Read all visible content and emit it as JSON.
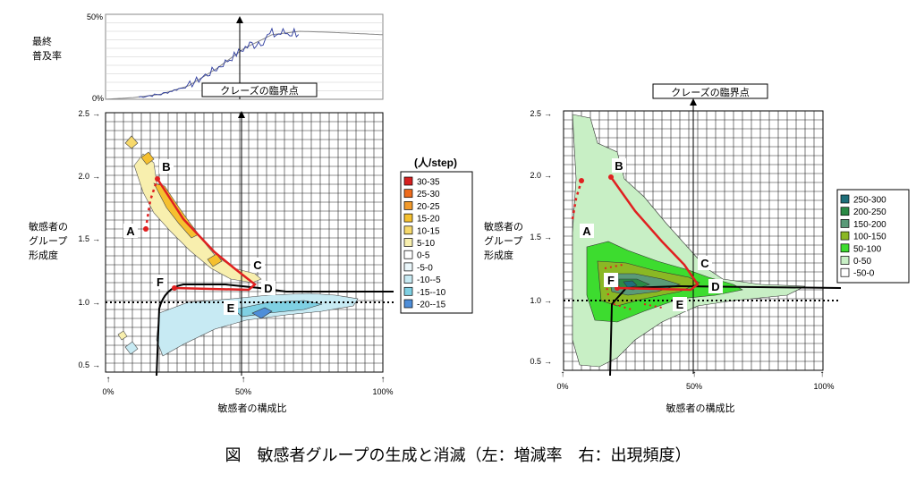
{
  "top_chart": {
    "ylabel_line1": "最終",
    "ylabel_line2": "普及率",
    "y_max_label": "50%",
    "y_min_label": "0%",
    "callout": "クレーズの臨界点"
  },
  "left_panel": {
    "callout": "クレーズの臨界点",
    "ylabel_line1": "敏感者の",
    "ylabel_line2": "グループ",
    "ylabel_line3": "形成度",
    "xlabel": "敏感者の構成比",
    "y_ticks": [
      "2.5",
      "2.0",
      "1.5",
      "1.0",
      "0.5"
    ],
    "x_ticks": [
      "0%",
      "50%",
      "100%"
    ],
    "legend_title": "(人/step)",
    "legend": [
      {
        "label": "30-35",
        "color": "#d62020"
      },
      {
        "label": "25-30",
        "color": "#ee6b1c"
      },
      {
        "label": "20-25",
        "color": "#f29a2b"
      },
      {
        "label": "15-20",
        "color": "#f5c02f"
      },
      {
        "label": "10-15",
        "color": "#f7d96b"
      },
      {
        "label": "5-10",
        "color": "#f8efae"
      },
      {
        "label": "0-5",
        "color": "#ffffff"
      },
      {
        "label": "-5-0",
        "color": "#eaf7fb"
      },
      {
        "label": "-10--5",
        "color": "#c7eaf3"
      },
      {
        "label": "-15--10",
        "color": "#7fd0e3"
      },
      {
        "label": "-20--15",
        "color": "#4e8ed9"
      }
    ],
    "points": [
      "A",
      "B",
      "C",
      "D",
      "E",
      "F"
    ]
  },
  "right_panel": {
    "callout": "クレーズの臨界点",
    "ylabel_line1": "敏感者の",
    "ylabel_line2": "グループ",
    "ylabel_line3": "形成度",
    "xlabel": "敏感者の構成比",
    "y_ticks": [
      "2.5",
      "2.0",
      "1.5",
      "1.0",
      "0.5"
    ],
    "x_ticks": [
      "0%",
      "50%",
      "100%"
    ],
    "legend": [
      {
        "label": "250-300",
        "color": "#1f6f7a"
      },
      {
        "label": "200-250",
        "color": "#2a8a45"
      },
      {
        "label": "150-200",
        "color": "#5a9a78"
      },
      {
        "label": "100-150",
        "color": "#8ab824"
      },
      {
        "label": "50-100",
        "color": "#3ddc2f"
      },
      {
        "label": "0-50",
        "color": "#c8efc5"
      },
      {
        "label": "-50-0",
        "color": "#ffffff"
      }
    ],
    "points": [
      "A",
      "B",
      "C",
      "D",
      "E",
      "F"
    ]
  },
  "caption": "図　敏感者グループの生成と消滅（左：増減率　右：出現頻度）",
  "chart_data": [
    {
      "type": "line",
      "x": [
        0,
        10,
        20,
        30,
        40,
        50,
        60,
        70,
        80,
        100
      ],
      "series": [
        {
          "values": [
            0,
            1,
            3,
            8,
            18,
            30,
            38,
            40,
            39.5,
            38
          ]
        }
      ],
      "ylim": [
        0,
        50
      ]
    },
    {
      "type": "heatmap",
      "xlabel": "敏感者の構成比",
      "ylabel": "敏感者のグループ形成度",
      "xlim": [
        0,
        100
      ],
      "ylim": [
        0.5,
        2.5
      ],
      "trajectory": {
        "points": [
          {
            "label": "A",
            "x": 14,
            "y": 1.55
          },
          {
            "label": "B",
            "x": 18,
            "y": 2.0
          },
          {
            "label": "C",
            "x": 54,
            "y": 1.15
          },
          {
            "label": "D",
            "x": 55,
            "y": 1.1
          },
          {
            "label": "E",
            "x": 45,
            "y": 1.05
          },
          {
            "label": "F",
            "x": 25,
            "y": 1.1
          }
        ]
      },
      "critical_point_x": 50
    },
    {
      "type": "heatmap",
      "xlabel": "敏感者の構成比",
      "ylabel": "敏感者のグループ形成度",
      "xlim": [
        0,
        100
      ],
      "ylim": [
        0.5,
        2.5
      ],
      "trajectory": {
        "points": [
          {
            "label": "A",
            "x": 8,
            "y": 1.55
          },
          {
            "label": "B",
            "x": 18,
            "y": 2.0
          },
          {
            "label": "C",
            "x": 52,
            "y": 1.15
          },
          {
            "label": "D",
            "x": 53,
            "y": 1.1
          },
          {
            "label": "E",
            "x": 45,
            "y": 1.05
          },
          {
            "label": "F",
            "x": 25,
            "y": 1.1
          }
        ]
      },
      "critical_point_x": 50
    }
  ]
}
